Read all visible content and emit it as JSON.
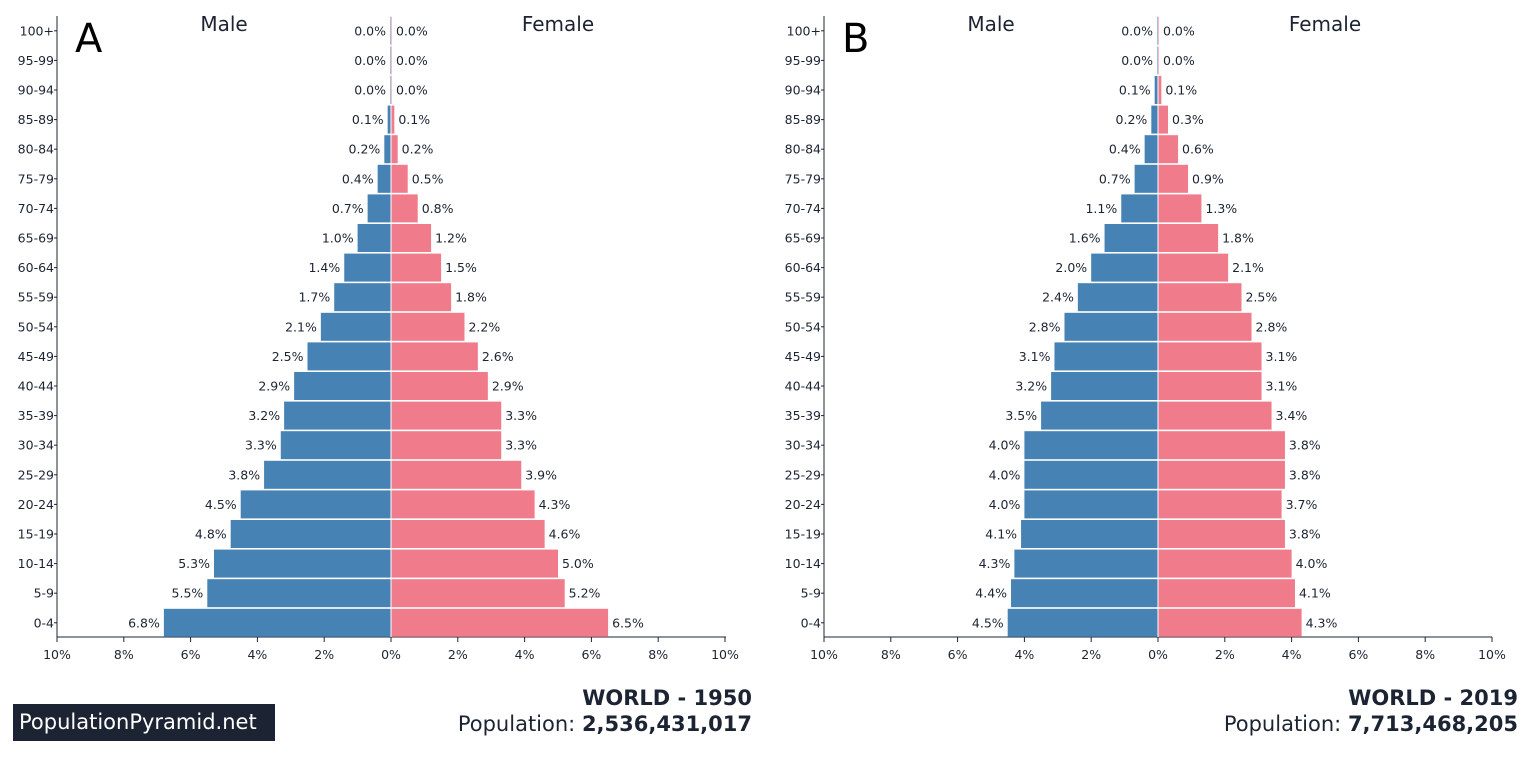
{
  "brand": "PopulationPyramid.net",
  "colors": {
    "male": "#4682b4",
    "female": "#f07b8a"
  },
  "chart_data": [
    {
      "type": "bar",
      "panel_label": "A",
      "title": "WORLD - 1950",
      "population_label": "Population:",
      "population_value": "2,536,431,017",
      "left_label": "Male",
      "right_label": "Female",
      "categories": [
        "100+",
        "95-99",
        "90-94",
        "85-89",
        "80-84",
        "75-79",
        "70-74",
        "65-69",
        "60-64",
        "55-59",
        "50-54",
        "45-49",
        "40-44",
        "35-39",
        "30-34",
        "25-29",
        "20-24",
        "15-19",
        "10-14",
        "5-9",
        "0-4"
      ],
      "series": [
        {
          "name": "Male",
          "values": [
            0.0,
            0.0,
            0.0,
            0.1,
            0.2,
            0.4,
            0.7,
            1.0,
            1.4,
            1.7,
            2.1,
            2.5,
            2.9,
            3.2,
            3.3,
            3.8,
            4.5,
            4.8,
            5.3,
            5.5,
            6.8
          ]
        },
        {
          "name": "Female",
          "values": [
            0.0,
            0.0,
            0.0,
            0.1,
            0.2,
            0.5,
            0.8,
            1.2,
            1.5,
            1.8,
            2.2,
            2.6,
            2.9,
            3.3,
            3.3,
            3.9,
            4.3,
            4.6,
            5.0,
            5.2,
            6.5
          ]
        }
      ],
      "xlim": [
        -10,
        10
      ],
      "xticks": [
        "10%",
        "8%",
        "6%",
        "4%",
        "2%",
        "0%",
        "2%",
        "4%",
        "6%",
        "8%",
        "10%"
      ]
    },
    {
      "type": "bar",
      "panel_label": "B",
      "title": "WORLD - 2019",
      "population_label": "Population:",
      "population_value": "7,713,468,205",
      "left_label": "Male",
      "right_label": "Female",
      "categories": [
        "100+",
        "95-99",
        "90-94",
        "85-89",
        "80-84",
        "75-79",
        "70-74",
        "65-69",
        "60-64",
        "55-59",
        "50-54",
        "45-49",
        "40-44",
        "35-39",
        "30-34",
        "25-29",
        "20-24",
        "15-19",
        "10-14",
        "5-9",
        "0-4"
      ],
      "series": [
        {
          "name": "Male",
          "values": [
            0.0,
            0.0,
            0.1,
            0.2,
            0.4,
            0.7,
            1.1,
            1.6,
            2.0,
            2.4,
            2.8,
            3.1,
            3.2,
            3.5,
            4.0,
            4.0,
            4.0,
            4.1,
            4.3,
            4.4,
            4.5
          ]
        },
        {
          "name": "Female",
          "values": [
            0.0,
            0.0,
            0.1,
            0.3,
            0.6,
            0.9,
            1.3,
            1.8,
            2.1,
            2.5,
            2.8,
            3.1,
            3.1,
            3.4,
            3.8,
            3.8,
            3.7,
            3.8,
            4.0,
            4.1,
            4.3
          ]
        }
      ],
      "xlim": [
        -10,
        10
      ],
      "xticks": [
        "10%",
        "8%",
        "6%",
        "4%",
        "2%",
        "0%",
        "2%",
        "4%",
        "6%",
        "8%",
        "10%"
      ]
    }
  ]
}
